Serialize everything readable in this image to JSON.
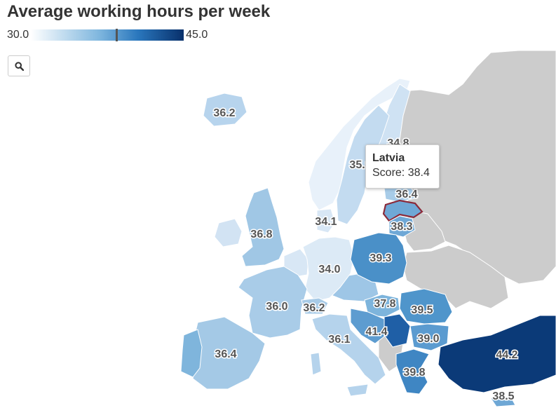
{
  "title": "Average working hours per week",
  "legend": {
    "min": "30.0",
    "max": "45.0",
    "min_value": 30.0,
    "max_value": 45.0,
    "marker_value": 38.4
  },
  "zoom": {
    "icon": "search-icon"
  },
  "tooltip": {
    "country": "Latvia",
    "score_label": "Score:",
    "score_value": "38.4"
  },
  "map_data": {
    "metric": "Average working hours per week",
    "countries": [
      {
        "name": "Iceland",
        "value": "36.2"
      },
      {
        "name": "Finland",
        "value": "34.8"
      },
      {
        "name": "Sweden",
        "value": "35.1"
      },
      {
        "name": "Estonia",
        "value": "36.4"
      },
      {
        "name": "Latvia",
        "value": "38.4"
      },
      {
        "name": "Lithuania",
        "value": "38.3"
      },
      {
        "name": "Denmark",
        "value": "34.1"
      },
      {
        "name": "United Kingdom",
        "value": "36.8"
      },
      {
        "name": "Germany",
        "value": "34.0"
      },
      {
        "name": "Poland",
        "value": "39.3"
      },
      {
        "name": "France",
        "value": "36.0"
      },
      {
        "name": "Switzerland",
        "value": "36.2"
      },
      {
        "name": "Hungary",
        "value": "37.8"
      },
      {
        "name": "Romania",
        "value": "39.5"
      },
      {
        "name": "Serbia",
        "value": "41.4"
      },
      {
        "name": "Bulgaria",
        "value": "39.0"
      },
      {
        "name": "Italy",
        "value": "36.1"
      },
      {
        "name": "Spain",
        "value": "36.4"
      },
      {
        "name": "Greece",
        "value": "39.8"
      },
      {
        "name": "Turkey",
        "value": "44.2"
      },
      {
        "name": "Cyprus",
        "value": "38.5"
      }
    ]
  }
}
